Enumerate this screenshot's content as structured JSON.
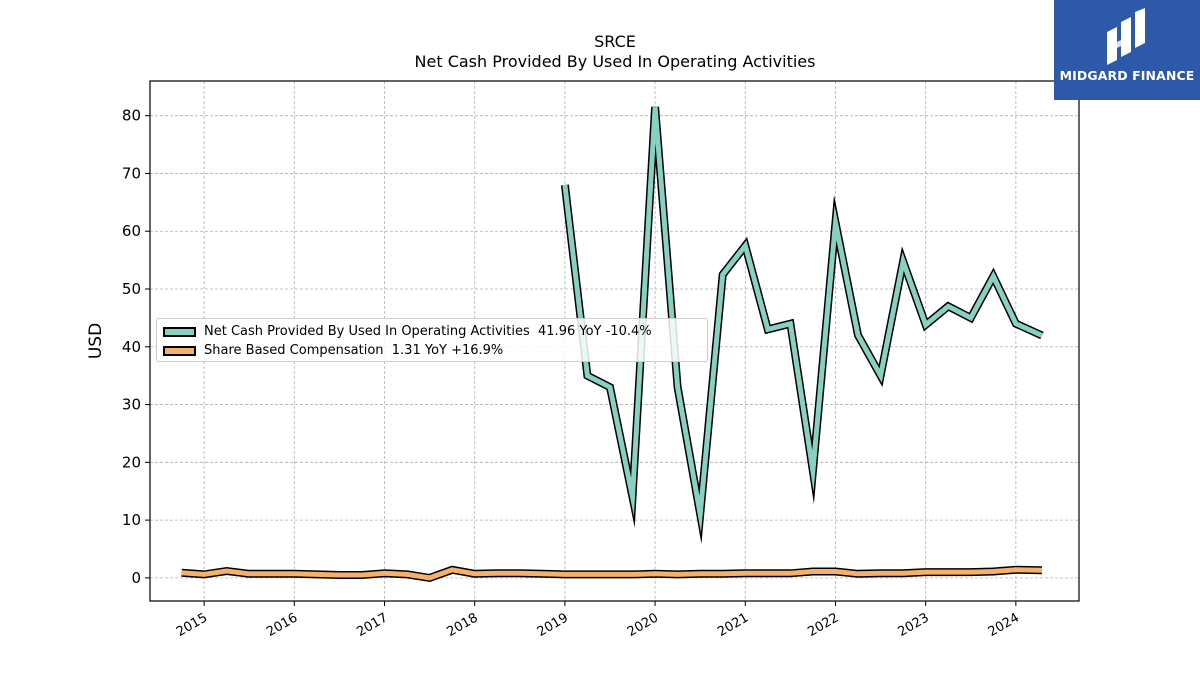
{
  "chart_data": {
    "type": "line",
    "title_line1": "SRCE",
    "title_line2": "Net Cash Provided By Used In Operating Activities",
    "ylabel": "USD",
    "ylim": [
      -4,
      86
    ],
    "yticks": [
      0,
      10,
      20,
      30,
      40,
      50,
      60,
      70,
      80
    ],
    "xlim": [
      2014.4,
      2024.7
    ],
    "xticks": [
      {
        "value": 2015,
        "label": "2015"
      },
      {
        "value": 2016,
        "label": "2016"
      },
      {
        "value": 2017,
        "label": "2017"
      },
      {
        "value": 2018,
        "label": "2018"
      },
      {
        "value": 2019,
        "label": "2019"
      },
      {
        "value": 2020,
        "label": "2020"
      },
      {
        "value": 2021,
        "label": "2021"
      },
      {
        "value": 2022,
        "label": "2022"
      },
      {
        "value": 2023,
        "label": "2023"
      },
      {
        "value": 2024,
        "label": "2024"
      }
    ],
    "grid": true,
    "legend_position": "center-left",
    "series": [
      {
        "name": "Net Cash Provided By Used In Operating Activities",
        "legend_label": "Net Cash Provided By Used In Operating Activities  41.96 YoY -10.4%",
        "color": "#88d1c0",
        "x": [
          2019.0,
          2019.25,
          2019.5,
          2019.75,
          2020.0,
          2020.25,
          2020.5,
          2020.75,
          2021.0,
          2021.25,
          2021.5,
          2021.75,
          2022.0,
          2022.25,
          2022.5,
          2022.75,
          2023.0,
          2023.25,
          2023.5,
          2023.75,
          2024.0,
          2024.29
        ],
        "y": [
          68,
          35,
          33,
          14,
          81.5,
          33,
          11,
          52.5,
          57.5,
          43,
          44,
          18.5,
          61.5,
          42,
          35,
          54.8,
          43.8,
          47,
          45,
          52.2,
          44,
          41.96
        ]
      },
      {
        "name": "Share Based Compensation",
        "legend_label": "Share Based Compensation  1.31 YoY +16.9%",
        "color": "#f5b06b",
        "x": [
          2014.75,
          2015.0,
          2015.25,
          2015.5,
          2015.75,
          2016.0,
          2016.25,
          2016.5,
          2016.75,
          2017.0,
          2017.25,
          2017.5,
          2017.75,
          2018.0,
          2018.25,
          2018.5,
          2018.75,
          2019.0,
          2019.25,
          2019.5,
          2019.75,
          2020.0,
          2020.25,
          2020.5,
          2020.75,
          2021.0,
          2021.25,
          2021.5,
          2021.75,
          2022.0,
          2022.25,
          2022.5,
          2022.75,
          2023.0,
          2023.25,
          2023.5,
          2023.75,
          2024.0,
          2024.29
        ],
        "y": [
          0.9,
          0.6,
          1.2,
          0.7,
          0.7,
          0.7,
          0.6,
          0.5,
          0.5,
          0.8,
          0.6,
          0.0,
          1.4,
          0.7,
          0.8,
          0.8,
          0.7,
          0.6,
          0.6,
          0.6,
          0.6,
          0.7,
          0.6,
          0.7,
          0.7,
          0.8,
          0.8,
          0.8,
          1.1,
          1.1,
          0.7,
          0.8,
          0.8,
          1.0,
          1.0,
          1.0,
          1.1,
          1.4,
          1.31
        ]
      }
    ]
  },
  "logo": {
    "text": "MIDGARD FINANCE",
    "background": "#2e58a8"
  }
}
